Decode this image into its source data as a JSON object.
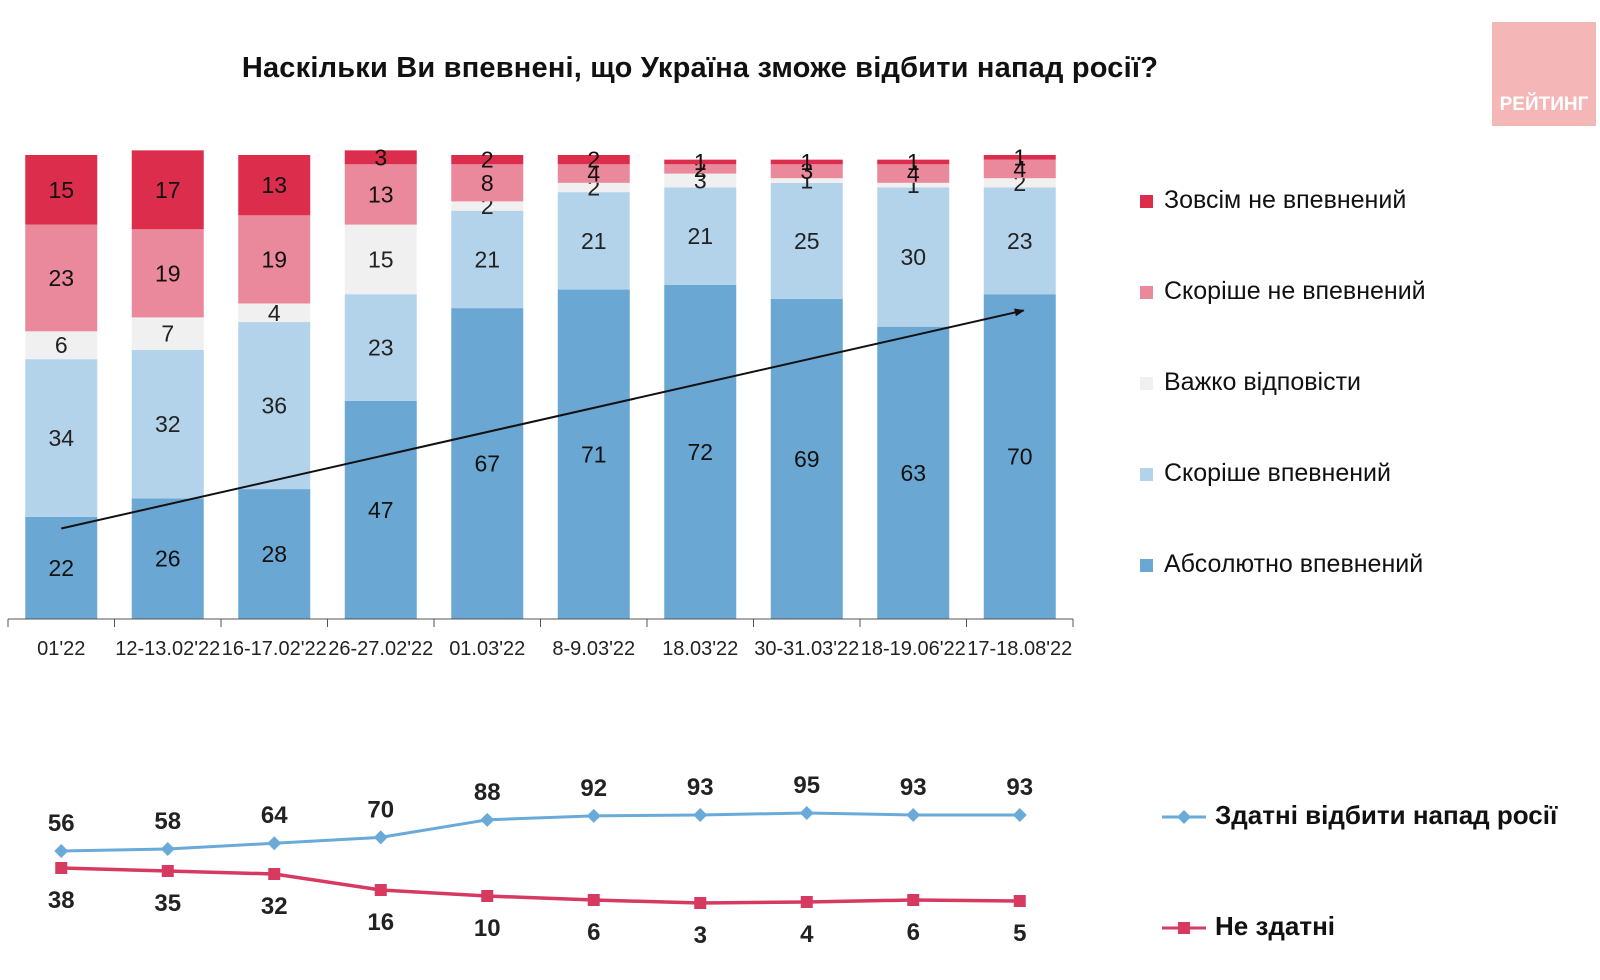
{
  "title": "Наскільки Ви впевнені, що Україна зможе відбити напад росії?",
  "logo_text": "РЕЙТИНГ",
  "chart_data": [
    {
      "type": "bar",
      "stacked": true,
      "title": "Наскільки Ви впевнені, що Україна зможе відбити напад росії?",
      "categories": [
        "01'22",
        "12-13.02'22",
        "16-17.02'22",
        "26-27.02'22",
        "01.03'22",
        "8-9.03'22",
        "18.03'22",
        "30-31.03'22",
        "18-19.06'22",
        "17-18.08'22"
      ],
      "ylim": [
        0,
        100
      ],
      "series": [
        {
          "name": "Абсолютно впевнений",
          "color": "#6aa7d3",
          "values": [
            22,
            26,
            28,
            47,
            67,
            71,
            72,
            69,
            63,
            70
          ]
        },
        {
          "name": "Скоріше впевнений",
          "color": "#b3d3ea",
          "values": [
            34,
            32,
            36,
            23,
            21,
            21,
            21,
            25,
            30,
            23
          ]
        },
        {
          "name": "Важко відповісти",
          "color": "#f0f0f0",
          "values": [
            6,
            7,
            4,
            15,
            2,
            2,
            3,
            1,
            1,
            2
          ]
        },
        {
          "name": "Скоріше не впевнений",
          "color": "#e9899b",
          "values": [
            23,
            19,
            19,
            13,
            8,
            4,
            2,
            3,
            4,
            4
          ]
        },
        {
          "name": "Зовсім не впевнений",
          "color": "#dc2e4c",
          "values": [
            15,
            17,
            13,
            3,
            2,
            2,
            1,
            1,
            1,
            1
          ]
        }
      ],
      "legend_position": "right",
      "trend_arrow": true
    },
    {
      "type": "line",
      "categories": [
        "01'22",
        "12-13.02'22",
        "16-17.02'22",
        "26-27.02'22",
        "01.03'22",
        "8-9.03'22",
        "18.03'22",
        "30-31.03'22",
        "18-19.06'22",
        "17-18.08'22"
      ],
      "series": [
        {
          "name": "Здатні відбити напад росії",
          "color": "#6aaad8",
          "marker": "diamond",
          "values": [
            56,
            58,
            64,
            70,
            88,
            92,
            93,
            95,
            93,
            93
          ]
        },
        {
          "name": "Не здатні",
          "color": "#d63a60",
          "marker": "square",
          "values": [
            38,
            35,
            32,
            16,
            10,
            6,
            3,
            4,
            6,
            5
          ]
        }
      ],
      "legend_position": "right"
    }
  ]
}
